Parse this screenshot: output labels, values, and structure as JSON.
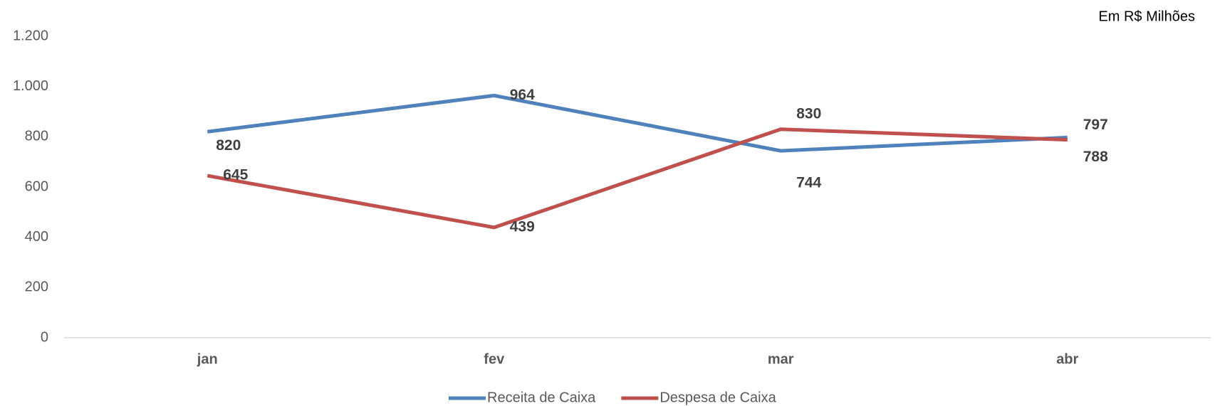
{
  "chart_data": {
    "type": "line",
    "unit_note": "Em R$ Milhões",
    "categories": [
      "jan",
      "fev",
      "mar",
      "abr"
    ],
    "series": [
      {
        "name": "Receita de Caixa",
        "color": "#4f81bd",
        "values": [
          820,
          964,
          744,
          797
        ]
      },
      {
        "name": "Despesa de Caixa",
        "color": "#c0504d",
        "values": [
          645,
          439,
          830,
          788
        ]
      }
    ],
    "ylim": [
      0,
      1200
    ],
    "yticks": [
      0,
      200,
      400,
      600,
      800,
      {
        "value": 1000,
        "label": "1.000"
      },
      {
        "value": 1200,
        "label": "1.200"
      }
    ],
    "grid": false,
    "legend": "bottom"
  }
}
